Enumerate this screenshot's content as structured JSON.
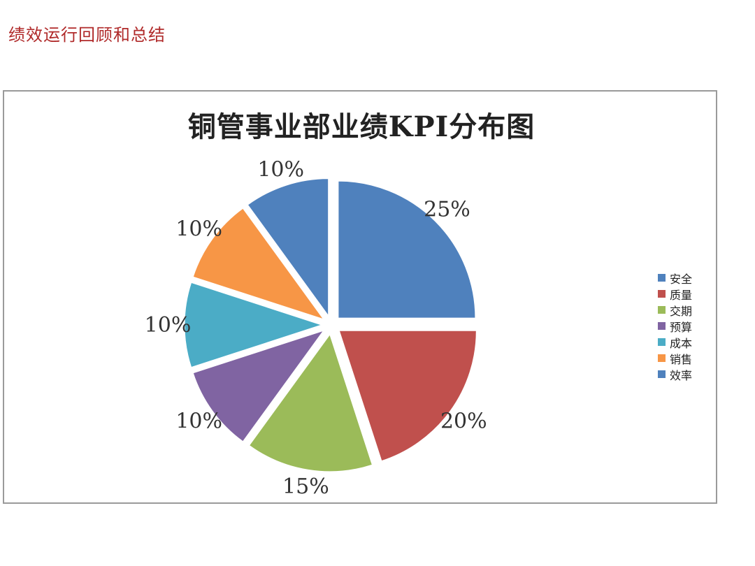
{
  "page": {
    "heading": "绩效运行回顾和总结"
  },
  "chart_data": {
    "type": "pie",
    "title": "铜管事业部业绩KPI分布图",
    "categories": [
      "安全",
      "质量",
      "交期",
      "预算",
      "成本",
      "销售",
      "效率"
    ],
    "values": [
      25,
      20,
      15,
      10,
      10,
      10,
      10
    ],
    "labels": [
      "25%",
      "20%",
      "15%",
      "10%",
      "10%",
      "10%",
      "10%"
    ],
    "colors": [
      "#4f81bd",
      "#c0504d",
      "#9bbb59",
      "#8064a2",
      "#4bacc6",
      "#f79646",
      "#4f81bd"
    ],
    "exploded": true,
    "legend_position": "right"
  }
}
